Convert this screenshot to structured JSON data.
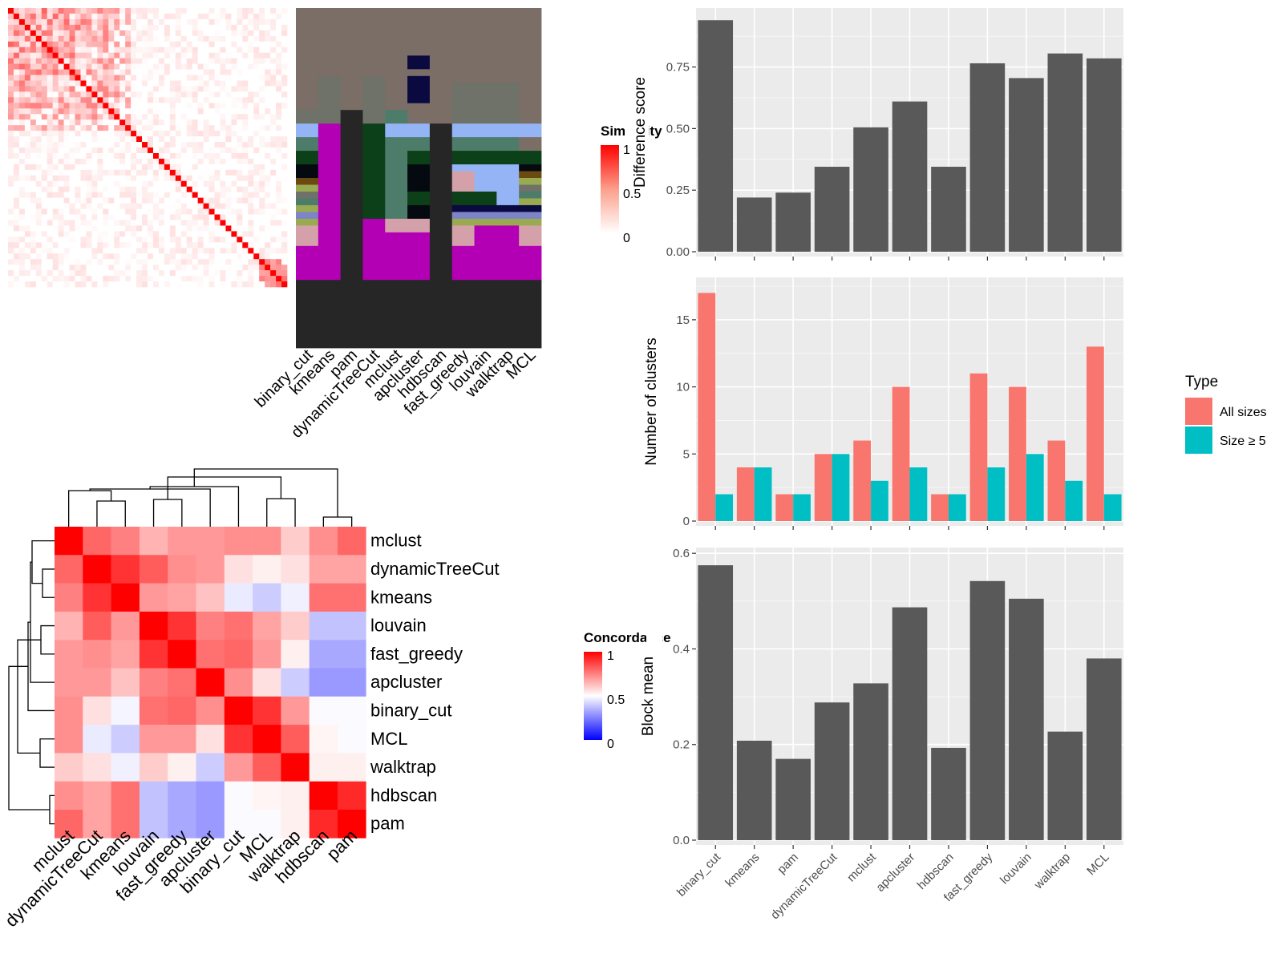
{
  "methods": [
    "binary_cut",
    "kmeans",
    "pam",
    "dynamicTreeCut",
    "mclust",
    "apcluster",
    "hdbscan",
    "fast_greedy",
    "louvain",
    "walktrap",
    "MCL"
  ],
  "similarity_legend": {
    "title": "Similarity",
    "ticks": [
      "1",
      "0.5",
      "0"
    ]
  },
  "assignment_panel": {
    "labels": [
      "binary_cut",
      "kmeans",
      "pam",
      "dynamicTreeCut",
      "mclust",
      "apcluster",
      "hdbscan",
      "fast_greedy",
      "louvain",
      "walktrap",
      "MCL"
    ]
  },
  "concordance": {
    "order": [
      "mclust",
      "dynamicTreeCut",
      "kmeans",
      "louvain",
      "fast_greedy",
      "apcluster",
      "binary_cut",
      "MCL",
      "walktrap",
      "hdbscan",
      "pam"
    ],
    "legend": {
      "title": "Concordance",
      "ticks": [
        "1",
        "0.5",
        "0"
      ]
    },
    "colors": {
      "high": "#ff0000",
      "mid": "#ffffff",
      "low": "#0000ff"
    }
  },
  "chart_data": [
    {
      "type": "bar",
      "categories": [
        "binary_cut",
        "kmeans",
        "pam",
        "dynamicTreeCut",
        "mclust",
        "apcluster",
        "hdbscan",
        "fast_greedy",
        "louvain",
        "walktrap",
        "MCL"
      ],
      "values": [
        0.94,
        0.22,
        0.24,
        0.345,
        0.505,
        0.61,
        0.345,
        0.765,
        0.705,
        0.805,
        0.785
      ],
      "title": "",
      "xlabel": "",
      "ylabel": "Difference score",
      "ylim": [
        0,
        0.97
      ],
      "yticks": [
        "0.00",
        "0.25",
        "0.50",
        "0.75"
      ],
      "bar_color": "#595959",
      "grid": true
    },
    {
      "type": "bar",
      "categories": [
        "binary_cut",
        "kmeans",
        "pam",
        "dynamicTreeCut",
        "mclust",
        "apcluster",
        "hdbscan",
        "fast_greedy",
        "louvain",
        "walktrap",
        "MCL"
      ],
      "series": [
        {
          "name": "All sizes",
          "values": [
            17,
            4,
            2,
            5,
            6,
            10,
            2,
            11,
            10,
            6,
            13
          ],
          "color": "#f8766d"
        },
        {
          "name": "Size ≥ 5",
          "values": [
            2,
            4,
            2,
            5,
            3,
            4,
            2,
            4,
            5,
            3,
            2
          ],
          "color": "#00bfc4"
        }
      ],
      "xlabel": "",
      "ylabel": "Number of clusters",
      "ylim": [
        0,
        17.8
      ],
      "yticks": [
        "0",
        "5",
        "10",
        "15"
      ],
      "legend": {
        "title": "Type",
        "position": "right"
      },
      "grid": true
    },
    {
      "type": "bar",
      "categories": [
        "binary_cut",
        "kmeans",
        "pam",
        "dynamicTreeCut",
        "mclust",
        "apcluster",
        "hdbscan",
        "fast_greedy",
        "louvain",
        "walktrap",
        "MCL"
      ],
      "values": [
        0.575,
        0.208,
        0.17,
        0.288,
        0.328,
        0.487,
        0.193,
        0.542,
        0.505,
        0.227,
        0.38
      ],
      "xlabel": "",
      "ylabel": "Block mean",
      "ylim": [
        0,
        0.602
      ],
      "yticks": [
        "0.0",
        "0.2",
        "0.4",
        "0.6"
      ],
      "bar_color": "#595959",
      "grid": true
    }
  ]
}
